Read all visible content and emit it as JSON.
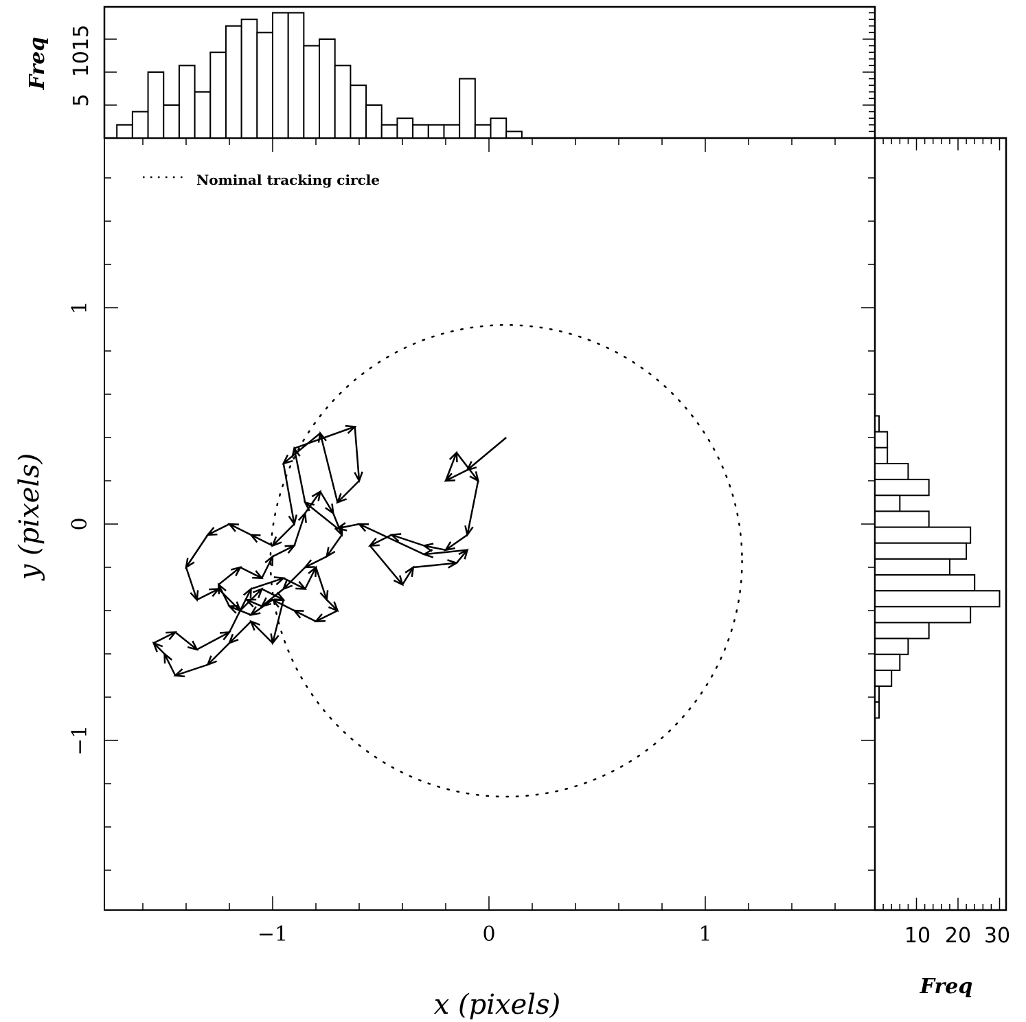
{
  "chart_data": [
    {
      "type": "scatter",
      "subtype": "quiver",
      "xlabel": "x (pixels)",
      "ylabel": "y (pixels)",
      "xlim": [
        -1.78,
        1.78
      ],
      "ylim": [
        -1.78,
        1.78
      ],
      "x_ticks": [
        -1,
        0,
        1
      ],
      "y_ticks": [
        -1,
        0,
        1
      ],
      "x_tick_labels": [
        "−1",
        "0",
        "1"
      ],
      "y_tick_labels": [
        "−1",
        "0",
        "1"
      ],
      "legend": {
        "placement": "top-left",
        "entries": [
          "Nominal tracking circle"
        ]
      },
      "circle": {
        "cx": 0.08,
        "cy": -0.17,
        "r": 1.09
      },
      "track": [
        [
          0.08,
          0.4
        ],
        [
          -0.1,
          0.25
        ],
        [
          -0.2,
          0.2
        ],
        [
          -0.15,
          0.33
        ],
        [
          -0.05,
          0.2
        ],
        [
          -0.1,
          -0.05
        ],
        [
          -0.2,
          -0.12
        ],
        [
          -0.3,
          -0.1
        ],
        [
          -0.45,
          -0.05
        ],
        [
          -0.55,
          -0.1
        ],
        [
          -0.4,
          -0.28
        ],
        [
          -0.35,
          -0.2
        ],
        [
          -0.15,
          -0.18
        ],
        [
          -0.1,
          -0.12
        ],
        [
          -0.3,
          -0.14
        ],
        [
          -0.6,
          0.0
        ],
        [
          -0.7,
          -0.02
        ],
        [
          -0.85,
          0.1
        ],
        [
          -0.9,
          0.35
        ],
        [
          -0.62,
          0.45
        ],
        [
          -0.6,
          0.2
        ],
        [
          -0.7,
          0.1
        ],
        [
          -0.78,
          0.42
        ],
        [
          -0.95,
          0.28
        ],
        [
          -0.9,
          0.0
        ],
        [
          -1.0,
          -0.1
        ],
        [
          -1.1,
          -0.05
        ],
        [
          -1.2,
          0.0
        ],
        [
          -1.3,
          -0.05
        ],
        [
          -1.4,
          -0.2
        ],
        [
          -1.35,
          -0.35
        ],
        [
          -1.25,
          -0.3
        ],
        [
          -1.15,
          -0.4
        ],
        [
          -1.05,
          -0.3
        ],
        [
          -0.95,
          -0.35
        ],
        [
          -1.0,
          -0.55
        ],
        [
          -1.1,
          -0.45
        ],
        [
          -1.2,
          -0.55
        ],
        [
          -1.3,
          -0.65
        ],
        [
          -1.45,
          -0.7
        ],
        [
          -1.5,
          -0.6
        ],
        [
          -1.55,
          -0.55
        ],
        [
          -1.45,
          -0.5
        ],
        [
          -1.35,
          -0.58
        ],
        [
          -1.2,
          -0.5
        ],
        [
          -1.1,
          -0.3
        ],
        [
          -0.95,
          -0.25
        ],
        [
          -0.85,
          -0.3
        ],
        [
          -0.8,
          -0.2
        ],
        [
          -0.75,
          -0.35
        ],
        [
          -0.7,
          -0.4
        ],
        [
          -0.8,
          -0.45
        ],
        [
          -0.9,
          -0.4
        ],
        [
          -1.0,
          -0.35
        ],
        [
          -1.1,
          -0.42
        ],
        [
          -1.2,
          -0.38
        ],
        [
          -1.25,
          -0.28
        ],
        [
          -1.15,
          -0.2
        ],
        [
          -1.05,
          -0.25
        ],
        [
          -1.0,
          -0.15
        ],
        [
          -0.9,
          -0.1
        ],
        [
          -0.85,
          0.05
        ],
        [
          -0.78,
          0.15
        ],
        [
          -0.72,
          0.05
        ],
        [
          -0.68,
          -0.05
        ],
        [
          -0.75,
          -0.15
        ],
        [
          -0.85,
          -0.2
        ],
        [
          -0.95,
          -0.3
        ],
        [
          -1.05,
          -0.38
        ],
        [
          -1.12,
          -0.35
        ]
      ],
      "top_histogram": {
        "ylabel": "Freq",
        "tick_labels": [
          "5",
          "1015"
        ],
        "bin_start": -1.72,
        "bin_width": 0.072,
        "counts": [
          2,
          4,
          10,
          5,
          11,
          7,
          13,
          17,
          18,
          16,
          19,
          19,
          14,
          15,
          11,
          8,
          5,
          2,
          3,
          2,
          2,
          2,
          9,
          2,
          3,
          1
        ]
      },
      "right_histogram": {
        "xlabel": "Freq",
        "tick_labels": [
          "10",
          "20",
          "30"
        ],
        "bin_start": 0.5,
        "bin_width": -0.0735,
        "counts": [
          1,
          3,
          3,
          8,
          13,
          6,
          13,
          23,
          22,
          18,
          24,
          30,
          23,
          13,
          8,
          6,
          4,
          1,
          1
        ]
      }
    }
  ]
}
